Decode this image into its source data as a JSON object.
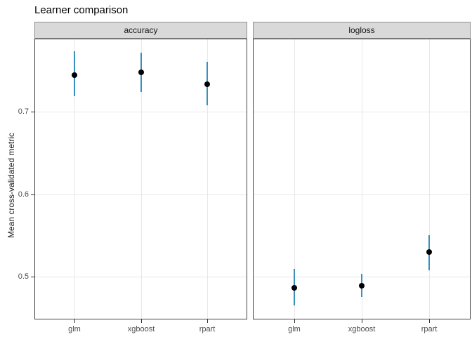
{
  "title": "Learner comparison",
  "chart_data": {
    "type": "scatter",
    "title": "Learner comparison",
    "xlabel": "",
    "ylabel": "Mean cross-validated metric",
    "categories": [
      "glm",
      "xgboost",
      "rpart"
    ],
    "yticks": [
      0.5,
      0.6,
      0.7
    ],
    "ylim": [
      0.448,
      0.789
    ],
    "grid": "major-only",
    "legend": "none",
    "facets": [
      {
        "label": "accuracy",
        "points": [
          {
            "category": "glm",
            "mean": 0.745,
            "lower": 0.719,
            "upper": 0.774
          },
          {
            "category": "xgboost",
            "mean": 0.748,
            "lower": 0.724,
            "upper": 0.772
          },
          {
            "category": "rpart",
            "mean": 0.734,
            "lower": 0.708,
            "upper": 0.761
          }
        ]
      },
      {
        "label": "logloss",
        "points": [
          {
            "category": "glm",
            "mean": 0.486,
            "lower": 0.465,
            "upper": 0.509
          },
          {
            "category": "xgboost",
            "mean": 0.489,
            "lower": 0.475,
            "upper": 0.503
          },
          {
            "category": "rpart",
            "mean": 0.53,
            "lower": 0.508,
            "upper": 0.55
          }
        ]
      }
    ],
    "colors": {
      "point": "#000000",
      "errorbar": "#3690c0",
      "strip_bg": "#d9d9d9",
      "gridline": "#e8e8e8",
      "panel_border": "#444444",
      "axis_text": "#4d4d4d"
    }
  }
}
